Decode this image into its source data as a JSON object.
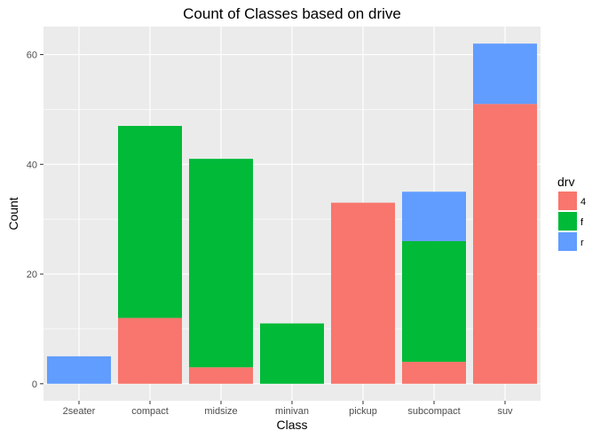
{
  "chart_data": {
    "type": "bar",
    "stacked": true,
    "title": "Count of Classes based on drive",
    "xlabel": "Class",
    "ylabel": "Count",
    "categories": [
      "2seater",
      "compact",
      "midsize",
      "minivan",
      "pickup",
      "subcompact",
      "suv"
    ],
    "series": [
      {
        "name": "4",
        "color": "#F8766D",
        "values": [
          0,
          12,
          3,
          0,
          33,
          4,
          51
        ]
      },
      {
        "name": "f",
        "color": "#00BA38",
        "values": [
          0,
          35,
          38,
          11,
          0,
          22,
          0
        ]
      },
      {
        "name": "r",
        "color": "#619CFF",
        "values": [
          5,
          0,
          0,
          0,
          0,
          9,
          11
        ]
      }
    ],
    "ylim": [
      -3.1,
      65.1
    ],
    "yticks": [
      0,
      20,
      40,
      60
    ],
    "grid": true,
    "legend": {
      "title": "drv",
      "position": "right"
    },
    "background_color": "#EBEBEB",
    "grid_color": "#FFFFFF"
  }
}
